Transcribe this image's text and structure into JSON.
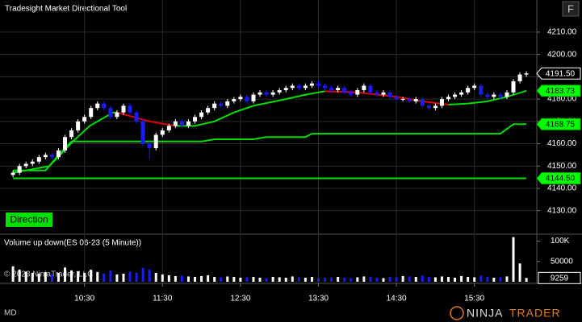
{
  "header": {
    "title": "Tradesight Market Directional Tool",
    "button": "F"
  },
  "overlay": {
    "direction": "Direction",
    "copyright": "© 2023 NinjaTrader, LLC"
  },
  "footer": {
    "mode": "MD",
    "brand_left": "NINJA",
    "brand_right": "TRADER"
  },
  "chart_data": [
    {
      "type": "candlestick",
      "up_color": "#ffffff",
      "down_color": "#1a1aff",
      "xlim": [
        565,
        978
      ],
      "ylim": [
        4119.8,
        4224.4
      ],
      "grid": true,
      "xticks": [
        {
          "value": 630,
          "label": "10:30"
        },
        {
          "value": 690,
          "label": "11:30"
        },
        {
          "value": 750,
          "label": "12:30"
        },
        {
          "value": 810,
          "label": "13:30"
        },
        {
          "value": 870,
          "label": "14:30"
        },
        {
          "value": 930,
          "label": "15:30"
        }
      ],
      "yticks": [
        {
          "value": 4210,
          "label": "4210.00"
        },
        {
          "value": 4200,
          "label": "4200.00"
        },
        {
          "value": 4190,
          "label": "4190.00"
        },
        {
          "value": 4180,
          "label": "4180.00"
        },
        {
          "value": 4170,
          "label": "4170.00"
        },
        {
          "value": 4160,
          "label": "4160.00"
        },
        {
          "value": 4150,
          "label": "4150.00"
        },
        {
          "value": 4140,
          "label": "4140.00"
        },
        {
          "value": 4130,
          "label": "4130.00"
        }
      ],
      "x": [
        575,
        580,
        585,
        590,
        595,
        600,
        605,
        610,
        615,
        620,
        625,
        630,
        635,
        640,
        645,
        650,
        655,
        660,
        665,
        670,
        675,
        680,
        685,
        690,
        695,
        700,
        705,
        710,
        715,
        720,
        725,
        730,
        735,
        740,
        745,
        750,
        755,
        760,
        765,
        770,
        775,
        780,
        785,
        790,
        795,
        800,
        805,
        810,
        815,
        820,
        825,
        830,
        835,
        840,
        845,
        850,
        855,
        860,
        865,
        870,
        875,
        880,
        885,
        890,
        895,
        900,
        905,
        910,
        915,
        920,
        925,
        930,
        935,
        940,
        945,
        950,
        955,
        960,
        965,
        970
      ],
      "open": [
        4146,
        4147,
        4150,
        4151,
        4152,
        4154,
        4155,
        4154,
        4157,
        4163,
        4166,
        4170,
        4172,
        4176,
        4178,
        4176,
        4172,
        4174,
        4177,
        4174,
        4170,
        4160,
        4158,
        4164,
        4166,
        4168,
        4170,
        4168,
        4170,
        4172,
        4174,
        4176,
        4178,
        4177,
        4179,
        4180,
        4181,
        4179,
        4182,
        4183,
        4182,
        4183,
        4184,
        4185,
        4186,
        4185,
        4186,
        4187,
        4186,
        4185,
        4184,
        4185,
        4183,
        4182,
        4184,
        4186,
        4183,
        4182,
        4183,
        4181,
        4180,
        4180,
        4179,
        4180,
        4177,
        4176,
        4177,
        4180,
        4181,
        4182,
        4183,
        4185,
        4186,
        4182,
        4181,
        4182,
        4181,
        4183,
        4188,
        4191
      ],
      "high": [
        4148,
        4151,
        4152,
        4153,
        4155,
        4156,
        4156,
        4158,
        4164,
        4167,
        4171,
        4173,
        4177,
        4179,
        4179,
        4177,
        4175,
        4178,
        4178,
        4175,
        4171,
        4161,
        4165,
        4167,
        4169,
        4171,
        4171,
        4171,
        4173,
        4175,
        4177,
        4179,
        4179,
        4180,
        4181,
        4182,
        4182,
        4183,
        4184,
        4184,
        4184,
        4185,
        4186,
        4187,
        4187,
        4187,
        4188,
        4188,
        4187,
        4186,
        4186,
        4186,
        4184,
        4185,
        4187,
        4187,
        4184,
        4184,
        4184,
        4182,
        4181,
        4181,
        4181,
        4181,
        4178,
        4178,
        4181,
        4182,
        4183,
        4184,
        4186,
        4187,
        4187,
        4183,
        4183,
        4183,
        4184,
        4189,
        4192,
        4192.5
      ],
      "low": [
        4145,
        4146,
        4149,
        4150,
        4151,
        4153,
        4153,
        4153,
        4156,
        4162,
        4165,
        4169,
        4171,
        4175,
        4175,
        4171,
        4171,
        4173,
        4173,
        4169,
        4159,
        4153,
        4157,
        4163,
        4165,
        4167,
        4167,
        4167,
        4169,
        4171,
        4173,
        4175,
        4176,
        4176,
        4178,
        4179,
        4178,
        4178,
        4181,
        4181,
        4181,
        4182,
        4183,
        4184,
        4184,
        4184,
        4185,
        4185,
        4184,
        4183,
        4183,
        4182,
        4181,
        4181,
        4183,
        4182,
        4181,
        4181,
        4180,
        4179,
        4179,
        4178,
        4178,
        4176,
        4175,
        4175,
        4176,
        4179,
        4180,
        4181,
        4182,
        4184,
        4181,
        4180,
        4180,
        4180,
        4180,
        4182,
        4187,
        4190
      ],
      "close": [
        4147,
        4150,
        4151,
        4152,
        4154,
        4155,
        4154,
        4157,
        4163,
        4166,
        4170,
        4172,
        4176,
        4178,
        4176,
        4172,
        4174,
        4177,
        4174,
        4170,
        4160,
        4158,
        4164,
        4166,
        4168,
        4170,
        4168,
        4170,
        4172,
        4174,
        4176,
        4178,
        4177,
        4179,
        4180,
        4181,
        4179,
        4182,
        4183,
        4182,
        4183,
        4184,
        4185,
        4186,
        4185,
        4186,
        4187,
        4186,
        4185,
        4184,
        4185,
        4183,
        4182,
        4184,
        4186,
        4183,
        4182,
        4183,
        4181,
        4180,
        4180,
        4179,
        4180,
        4177,
        4176,
        4177,
        4180,
        4181,
        4182,
        4183,
        4185,
        4186,
        4182,
        4181,
        4182,
        4181,
        4183,
        4188,
        4191,
        4191.5
      ],
      "lines": [
        {
          "color": "#00dd00",
          "x": [
            575,
            603,
            621,
            634,
            652,
            655
          ],
          "values": [
            4147,
            4150,
            4161,
            4168,
            4174,
            4174
          ]
        },
        {
          "color": "#e00000",
          "x": [
            655,
            680,
            700
          ],
          "values": [
            4174,
            4170,
            4168
          ]
        },
        {
          "color": "#00dd00",
          "x": [
            700,
            715,
            730,
            745,
            760,
            785,
            800,
            815
          ],
          "values": [
            4168,
            4168,
            4170,
            4174,
            4177,
            4180,
            4182,
            4183.5
          ]
        },
        {
          "color": "#e00000",
          "x": [
            815,
            840,
            870,
            890,
            910
          ],
          "values": [
            4183.5,
            4183,
            4181,
            4179,
            4177.5
          ]
        },
        {
          "color": "#00dd00",
          "x": [
            910,
            925,
            940,
            955,
            970
          ],
          "values": [
            4177.5,
            4178,
            4179,
            4181,
            4183.73
          ]
        },
        {
          "color": "#00dd00",
          "x": [
            575,
            600,
            610,
            620,
            720,
            730,
            760,
            770,
            800,
            805,
            950,
            960,
            970
          ],
          "values": [
            4148,
            4148,
            4155,
            4161,
            4161,
            4162,
            4162,
            4163,
            4163,
            4164.5,
            4164.5,
            4168.75,
            4168.75
          ]
        },
        {
          "color": "#00dd00",
          "x": [
            575,
            970
          ],
          "values": [
            4144.5,
            4144.5
          ]
        }
      ],
      "markers": [
        {
          "value": 4191.5,
          "label": "4191.50",
          "color": "#000000"
        },
        {
          "value": 4183.73,
          "label": "4183.73",
          "color": "#00ff00"
        },
        {
          "value": 4168.75,
          "label": "4168.75",
          "color": "#00ff00"
        },
        {
          "value": 4144.5,
          "label": "4144.50",
          "color": "#00ff00"
        }
      ]
    },
    {
      "type": "bar",
      "title": "Volume up down(ES 06-23 (5 Minute))",
      "ylim": [
        0,
        115000
      ],
      "yticks": [
        {
          "value": 100000,
          "label": "100K"
        },
        50000
      ],
      "values": [
        38000,
        30000,
        25000,
        22000,
        20000,
        24000,
        18000,
        22000,
        35000,
        28000,
        26000,
        22000,
        30000,
        24000,
        20000,
        28000,
        18000,
        20000,
        25000,
        22000,
        34000,
        30000,
        22000,
        18000,
        16000,
        14000,
        15000,
        13000,
        12000,
        14000,
        16000,
        12000,
        11000,
        13000,
        12000,
        10000,
        11000,
        12000,
        10000,
        9000,
        12000,
        11000,
        10000,
        13000,
        11000,
        10000,
        12000,
        9000,
        10000,
        11000,
        12000,
        10000,
        9000,
        11000,
        13000,
        12000,
        10000,
        9000,
        12000,
        11000,
        14000,
        13000,
        12000,
        15000,
        12000,
        11000,
        13000,
        12000,
        10000,
        14000,
        12000,
        11000,
        15000,
        12000,
        10000,
        11000,
        13000,
        110000,
        45000,
        9259
      ],
      "marker": {
        "value": 9259,
        "color": "#000000"
      }
    }
  ]
}
